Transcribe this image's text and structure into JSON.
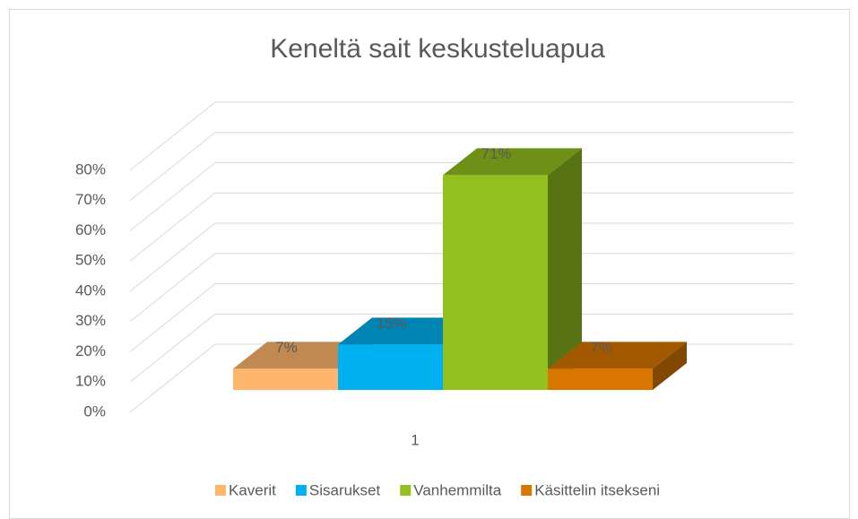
{
  "chart_data": {
    "type": "bar3d",
    "title": "Keneltä sait keskusteluapua",
    "categories": [
      "1"
    ],
    "series": [
      {
        "name": "Kaverit",
        "color": "#ffb66c",
        "values": [
          7
        ],
        "value_labels": [
          "7%"
        ]
      },
      {
        "name": "Sisarukset",
        "color": "#00b0f0",
        "values": [
          15
        ],
        "value_labels": [
          "15%"
        ]
      },
      {
        "name": "Vanhemmilta",
        "color": "#92c01f",
        "values": [
          71
        ],
        "value_labels": [
          "71%"
        ]
      },
      {
        "name": "Käsittelin itsekseni",
        "color": "#d97600",
        "values": [
          7
        ],
        "value_labels": [
          "7%"
        ]
      }
    ],
    "ylim": [
      0,
      80
    ],
    "yticks": [
      {
        "value": 0,
        "label": "0%"
      },
      {
        "value": 10,
        "label": "10%"
      },
      {
        "value": 20,
        "label": "20%"
      },
      {
        "value": 30,
        "label": "30%"
      },
      {
        "value": 40,
        "label": "40%"
      },
      {
        "value": 50,
        "label": "50%"
      },
      {
        "value": 60,
        "label": "60%"
      },
      {
        "value": 70,
        "label": "70%"
      },
      {
        "value": 80,
        "label": "80%"
      }
    ],
    "grid": true,
    "legend": "bottom"
  }
}
